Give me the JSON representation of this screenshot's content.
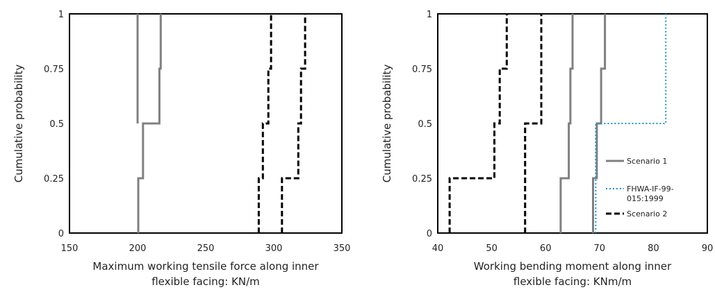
{
  "chart_data": [
    {
      "type": "line",
      "step": true,
      "xlabel": [
        "Maximum working tensile force along inner",
        "flexible facing: KN/m"
      ],
      "ylabel": "Cumulative probability",
      "xlim": [
        150,
        350
      ],
      "ylim": [
        0,
        1
      ],
      "xticks": [
        "150",
        "200",
        "250",
        "300",
        "350"
      ],
      "yticks": [
        "0",
        "0.25",
        "0.5",
        "0.75",
        "1"
      ],
      "grid": false,
      "series": [
        {
          "style": "solid",
          "color": "#808080",
          "x": [
            200.5,
            200.5,
            204,
            204,
            204,
            204,
            216,
            216,
            217,
            217,
            217
          ],
          "y": [
            0,
            0.25,
            0.25,
            0.5,
            0.5,
            0.5,
            0.5,
            0.75,
            0.75,
            1,
            1
          ]
        },
        {
          "style": "solid",
          "color": "#808080",
          "x": [
            200,
            200
          ],
          "y": [
            0.5,
            1
          ]
        },
        {
          "style": "dashed",
          "color": "#000000",
          "x": [
            289,
            289,
            292,
            292,
            296,
            296,
            298,
            298
          ],
          "y": [
            0,
            0.25,
            0.25,
            0.5,
            0.5,
            0.75,
            0.75,
            1
          ]
        },
        {
          "style": "dashed",
          "color": "#000000",
          "x": [
            306,
            306,
            318,
            318,
            320,
            320,
            323,
            323
          ],
          "y": [
            0,
            0.25,
            0.25,
            0.5,
            0.5,
            0.75,
            0.75,
            1
          ]
        }
      ]
    },
    {
      "type": "line",
      "step": true,
      "xlabel": [
        "Working bending moment along inner",
        "flexible facing: KNm/m"
      ],
      "ylabel": "Cumulative probability",
      "xlim": [
        40,
        90
      ],
      "ylim": [
        0,
        1
      ],
      "xticks": [
        "40",
        "50",
        "60",
        "70",
        "80",
        "90"
      ],
      "yticks": [
        "0",
        "0.25",
        "0.5",
        "0.75",
        "1"
      ],
      "grid": false,
      "legend": {
        "position": "right"
      },
      "series": [
        {
          "name": "Scenario 1",
          "style": "solid",
          "color": "#808080",
          "x": [
            62.8,
            62.8,
            64.3,
            64.3,
            64.6,
            64.6,
            65,
            65
          ],
          "y": [
            0,
            0.25,
            0.25,
            0.5,
            0.5,
            0.75,
            0.75,
            1
          ]
        },
        {
          "style": "solid",
          "color": "#808080",
          "x": [
            68.8,
            68.8,
            69.5,
            69.5,
            70.3,
            70.3,
            71,
            71
          ],
          "y": [
            0,
            0.25,
            0.25,
            0.5,
            0.5,
            0.75,
            0.75,
            1
          ]
        },
        {
          "name": "FHWA-IF-99-015:1999",
          "style": "dotted",
          "color": "#1a8fd0",
          "x": [
            69.3,
            69.3,
            82.3,
            82.3
          ],
          "y": [
            0,
            0.5,
            0.5,
            1
          ]
        },
        {
          "name": "Scenario 2",
          "style": "dashed",
          "color": "#000000",
          "x": [
            42.2,
            42.2,
            50.5,
            50.5,
            51.5,
            51.5,
            52.8,
            52.8
          ],
          "y": [
            0,
            0.25,
            0.25,
            0.5,
            0.5,
            0.75,
            0.75,
            1
          ]
        },
        {
          "style": "dashed",
          "color": "#000000",
          "x": [
            56.2,
            56.2,
            59.2,
            59.2,
            59.2
          ],
          "y": [
            0,
            0.5,
            0.5,
            0.75,
            1
          ]
        }
      ],
      "legend_entries": [
        {
          "label_lines": [
            "Scenario 1"
          ],
          "style": "solid",
          "color": "#808080"
        },
        {
          "label_lines": [
            "FHWA-IF-99-",
            "015:1999"
          ],
          "style": "dotted",
          "color": "#1a8fd0"
        },
        {
          "label_lines": [
            "Scenario 2"
          ],
          "style": "dashed",
          "color": "#000000"
        }
      ]
    }
  ]
}
